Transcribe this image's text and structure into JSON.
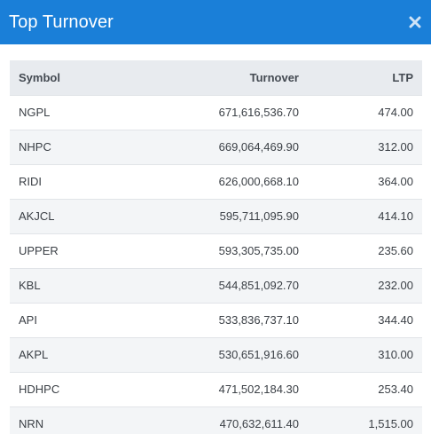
{
  "header": {
    "title": "Top Turnover",
    "close_icon": "close-icon"
  },
  "table": {
    "columns": [
      "Symbol",
      "Turnover",
      "LTP"
    ],
    "rows": [
      {
        "symbol": "NGPL",
        "turnover": "671,616,536.70",
        "ltp": "474.00"
      },
      {
        "symbol": "NHPC",
        "turnover": "669,064,469.90",
        "ltp": "312.00"
      },
      {
        "symbol": "RIDI",
        "turnover": "626,000,668.10",
        "ltp": "364.00"
      },
      {
        "symbol": "AKJCL",
        "turnover": "595,711,095.90",
        "ltp": "414.10"
      },
      {
        "symbol": "UPPER",
        "turnover": "593,305,735.00",
        "ltp": "235.60"
      },
      {
        "symbol": "KBL",
        "turnover": "544,851,092.70",
        "ltp": "232.00"
      },
      {
        "symbol": "API",
        "turnover": "533,836,737.10",
        "ltp": "344.40"
      },
      {
        "symbol": "AKPL",
        "turnover": "530,651,916.60",
        "ltp": "310.00"
      },
      {
        "symbol": "HDHPC",
        "turnover": "471,502,184.30",
        "ltp": "253.40"
      },
      {
        "symbol": "NRN",
        "turnover": "470,632,611.40",
        "ltp": "1,515.00"
      }
    ]
  },
  "colors": {
    "header_bg": "#1a7fd8",
    "table_header_bg": "#e8ebef",
    "row_alt_bg": "#f3f5f7"
  }
}
